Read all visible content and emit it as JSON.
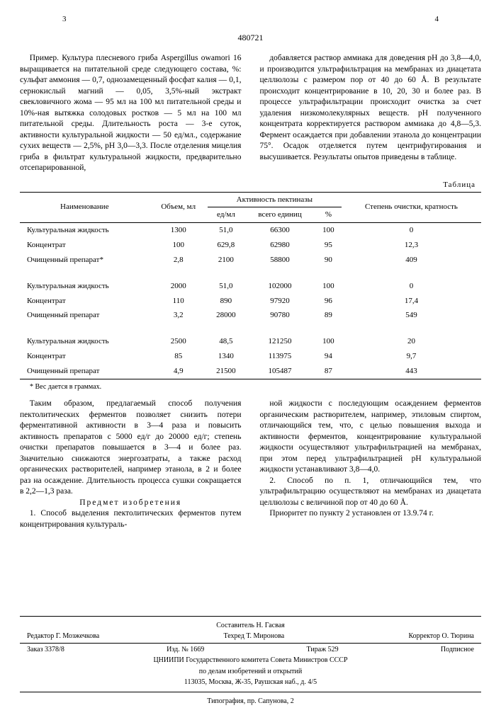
{
  "patent_number": "480721",
  "page_left": "3",
  "page_right": "4",
  "col1_p1": "Пример. Культура плесневого гриба Aspergillus owamori 16 выращивается на питательной среде следующего состава, %: сульфат аммония — 0,7, однозамещенный фосфат калия — 0,1, сернокислый магний — 0,05, 3,5%-ный экстракт свекловичного жома — 95 мл на 100 мл питательной среды и 10%-ная вытяжка солодовых ростков — 5 мл на 100 мл питательной среды. Длительность роста — 3-е суток, активности культуральной жидкости — 50 ед/мл., содержание сухих веществ — 2,5%, pH 3,0—3,3. После отделения мицелия гриба в фильтрат культуральной жидкости, предварительно отсепарированной,",
  "col2_p1": "добавляется раствор аммиака для доведения pH до 3,8—4,0, и производится ультрафильтрация на мембранах из диацетата целлюлозы с размером пор от 40 до 60 Å. В результате происходит концентрирование в 10, 20, 30 и более раз. В процессе ультрафильтрации происходит очистка за счет удаления низкомолекулярных веществ. pH полученного концентрата корректируется раствором аммиака до 4,8—5,3. Фермент осаждается при добавлении этанола до концентрации 75°. Осадок отделяется путем центрифугирования и высушивается. Результаты опытов приведены в таблице.",
  "table": {
    "caption": "Таблица",
    "headers": {
      "name": "Наименование",
      "volume": "Объем, мл",
      "activity": "Активность пектиназы",
      "ed_ml": "ед/мл",
      "total": "всего единиц",
      "percent": "%",
      "purity": "Степень очистки, кратность"
    },
    "groups": [
      {
        "rows": [
          {
            "name": "Культуральная жидкость",
            "vol": "1300",
            "edml": "51,0",
            "total": "66300",
            "pct": "100",
            "pur": "0"
          },
          {
            "name": "Концентрат",
            "vol": "100",
            "edml": "629,8",
            "total": "62980",
            "pct": "95",
            "pur": "12,3"
          },
          {
            "name": "Очищенный препарат*",
            "vol": "2,8",
            "edml": "2100",
            "total": "58800",
            "pct": "90",
            "pur": "409"
          }
        ]
      },
      {
        "rows": [
          {
            "name": "Культуральная жидкость",
            "vol": "2000",
            "edml": "51,0",
            "total": "102000",
            "pct": "100",
            "pur": "0"
          },
          {
            "name": "Концентрат",
            "vol": "110",
            "edml": "890",
            "total": "97920",
            "pct": "96",
            "pur": "17,4"
          },
          {
            "name": "Очищенный препарат",
            "vol": "3,2",
            "edml": "28000",
            "total": "90780",
            "pct": "89",
            "pur": "549"
          }
        ]
      },
      {
        "rows": [
          {
            "name": "Культуральная жидкость",
            "vol": "2500",
            "edml": "48,5",
            "total": "121250",
            "pct": "100",
            "pur": "20"
          },
          {
            "name": "Концентрат",
            "vol": "85",
            "edml": "1340",
            "total": "113975",
            "pct": "94",
            "pur": "9,7"
          },
          {
            "name": "Очищенный препарат",
            "vol": "4,9",
            "edml": "21500",
            "total": "105487",
            "pct": "87",
            "pur": "443"
          }
        ]
      }
    ],
    "footnote": "* Вес дается в граммах."
  },
  "lower_left_p1": "Таким образом, предлагаемый способ получения пектолитических ферментов позволяет снизить потери ферментативной активности в 3—4 раза и повысить активность препаратов с 5000 ед/г до 20000 ед/г; степень очистки препаратов повышается в 3—4 и более раз. Значительно снижаются энергозатраты, а также расход органических растворителей, например этанола, в 2 и более раз на осаждение. Длительность процесса сушки сокращается в 2,2—1,3 раза.",
  "subject_title": "Предмет изобретения",
  "lower_left_p2": "1. Способ выделения пектолитических ферментов путем концентрирования культураль-",
  "lower_right_p1": "ной жидкости с последующим осаждением ферментов органическим растворителем, например, этиловым спиртом, отличающийся тем, что, с целью повышения выхода и активности ферментов, концентрирование культуральной жидкости осуществляют ультрафильтрацией на мембранах, при этом перед ультрафильтрацией pH культуральной жидкости устанавливают 3,8—4,0.",
  "lower_right_p2": "2. Способ по п. 1, отличающийся тем, что ультрафильтрацию осуществляют на мембранах из диацетата целлюлозы с величиной пор от 40 до 60 Å.",
  "lower_right_p3": "Приоритет по пункту 2 установлен от 13.9.74 г.",
  "footer": {
    "compiler": "Составитель Н. Гасвая",
    "editor": "Редактор Г. Мозжечкова",
    "tech": "Техред Т. Миронова",
    "corrector": "Корректор О. Тюрина",
    "order": "Заказ 3378/8",
    "ed": "Изд. № 1669",
    "tirage": "Тираж 529",
    "sub": "Подписное",
    "org1": "ЦНИИПИ Государственного комитета Совета Министров СССР",
    "org2": "по делам изобретений и открытий",
    "addr": "113035, Москва, Ж-35, Раушская наб., д. 4/5",
    "printer": "Типография, пр. Сапунова, 2"
  }
}
